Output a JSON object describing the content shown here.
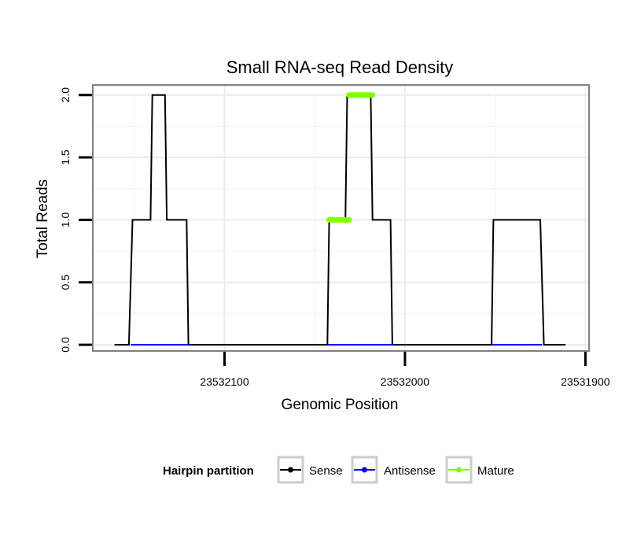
{
  "chart_data": {
    "type": "line",
    "title": "Small RNA-seq Read Density",
    "xlabel": "Genomic Position",
    "ylabel": "Total Reads",
    "x_reversed": true,
    "xlim": [
      23532173,
      23531898
    ],
    "ylim": [
      -0.05,
      2.08
    ],
    "x_ticks": [
      23532100,
      23532000,
      23531900
    ],
    "x_tick_labels": [
      "23532100",
      "23532000",
      "23531900"
    ],
    "y_ticks": [
      0,
      0.5,
      1,
      1.5,
      2
    ],
    "y_tick_labels": [
      "0.0",
      "0.5",
      "1.0",
      "1.5",
      "2.0"
    ],
    "grid": true,
    "legend_position": "bottom",
    "legend_title": "Hairpin partition",
    "series": [
      {
        "name": "Sense",
        "color": "#000000",
        "linewidth": 2,
        "x": [
          23532161,
          23532153,
          23532151,
          23532141,
          23532140,
          23532133,
          23532132,
          23532121,
          23532120,
          23532043,
          23532042,
          23532033,
          23532032,
          23532019,
          23532018,
          23532008,
          23532007,
          23531952,
          23531951,
          23531925,
          23531923,
          23531911
        ],
        "y": [
          0,
          0,
          1,
          1,
          2,
          2,
          1,
          1,
          0,
          0,
          1,
          1,
          2,
          2,
          1,
          1,
          0,
          0,
          1,
          1,
          0,
          0
        ]
      },
      {
        "name": "Antisense",
        "color": "#0000ff",
        "linewidth": 2,
        "segments": [
          {
            "x": [
              23532152,
              23532120
            ],
            "y": [
              0,
              0
            ]
          },
          {
            "x": [
              23532043,
              23532006
            ],
            "y": [
              0,
              0
            ]
          },
          {
            "x": [
              23531952,
              23531924
            ],
            "y": [
              0,
              0
            ]
          }
        ]
      },
      {
        "name": "Mature",
        "color": "#7fff00",
        "linewidth": 7,
        "segments": [
          {
            "x": [
              23532042,
              23532031
            ],
            "y": [
              1,
              1
            ]
          },
          {
            "x": [
              23532031,
              23532018
            ],
            "y": [
              2,
              2
            ]
          }
        ]
      }
    ]
  }
}
